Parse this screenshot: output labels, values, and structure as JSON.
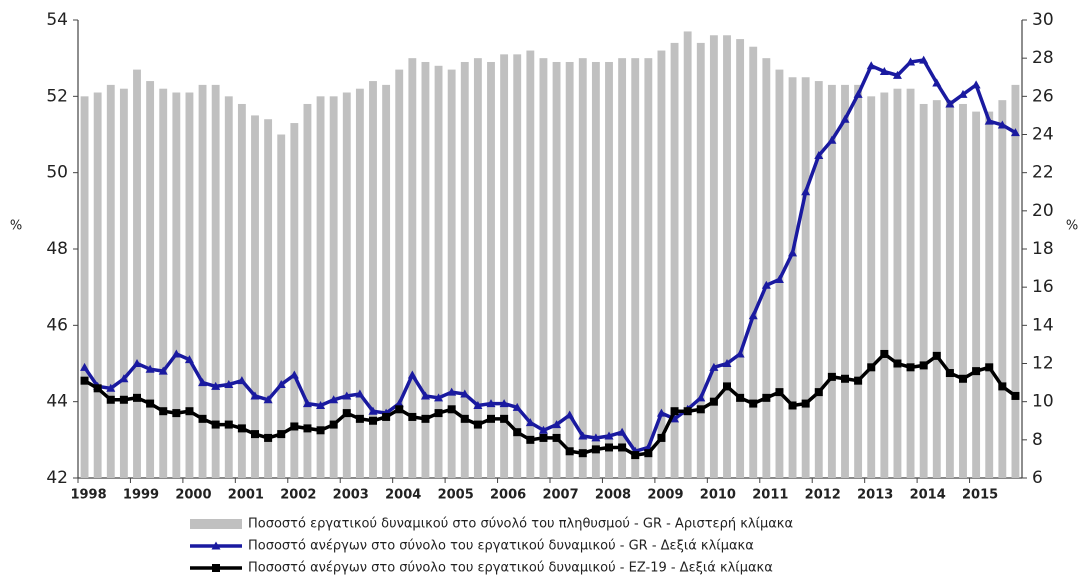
{
  "chart_data": {
    "type": "combo",
    "categories": [
      "1998",
      null,
      null,
      null,
      "1999",
      null,
      null,
      null,
      "2000",
      null,
      null,
      null,
      "2001",
      null,
      null,
      null,
      "2002",
      null,
      null,
      null,
      "2003",
      null,
      null,
      null,
      "2004",
      null,
      null,
      null,
      "2005",
      null,
      null,
      null,
      "2006",
      null,
      null,
      null,
      "2007",
      null,
      null,
      null,
      "2008",
      null,
      null,
      null,
      "2009",
      null,
      null,
      null,
      "2010",
      null,
      null,
      null,
      "2011",
      null,
      null,
      null,
      "2012",
      null,
      null,
      null,
      "2013",
      null,
      null,
      null,
      "2014",
      null,
      null,
      null,
      "2015",
      null,
      null,
      null
    ],
    "ylabel": "%",
    "y2label": "%",
    "ylim": [
      42,
      54
    ],
    "yticks": [
      42,
      44,
      46,
      48,
      50,
      52,
      54
    ],
    "y2lim": [
      6,
      30
    ],
    "y2ticks": [
      6,
      8,
      10,
      12,
      14,
      16,
      18,
      20,
      22,
      24,
      26,
      28,
      30
    ],
    "series": [
      {
        "name": "Ποσοστό εργατικού δυναμικού στο σύνολό του πληθυσμού - GR - Αριστερή κλίμακα",
        "kind": "bar",
        "color": "#c0c0c0",
        "values": [
          52.0,
          52.1,
          52.3,
          52.2,
          52.7,
          52.4,
          52.2,
          52.1,
          52.1,
          52.3,
          52.3,
          52.0,
          51.8,
          51.5,
          51.4,
          51.0,
          51.3,
          51.8,
          52.0,
          52.0,
          52.1,
          52.2,
          52.4,
          52.3,
          52.7,
          53.0,
          52.9,
          52.8,
          52.7,
          52.9,
          53.0,
          52.9,
          53.1,
          53.1,
          53.2,
          53.0,
          52.9,
          52.9,
          53.0,
          52.9,
          52.9,
          53.0,
          53.0,
          53.0,
          53.2,
          53.4,
          53.7,
          53.4,
          53.6,
          53.6,
          53.5,
          53.3,
          53.0,
          52.7,
          52.5,
          52.5,
          52.4,
          52.3,
          52.3,
          52.3,
          52.0,
          52.1,
          52.2,
          52.2,
          51.8,
          51.9,
          51.9,
          51.8,
          51.6,
          51.6,
          51.9,
          52.3
        ]
      },
      {
        "name": "Ποσοστό ανέργων στο σύνολο του εργατικού δυναμικού - GR - Δεξιά κλίμακα",
        "kind": "line",
        "marker": "triangle",
        "axis": "y2",
        "color": "#1a1aa0",
        "values": [
          11.8,
          10.8,
          10.7,
          11.2,
          12.0,
          11.7,
          11.6,
          12.5,
          12.2,
          11.0,
          10.8,
          10.9,
          11.1,
          10.3,
          10.1,
          10.9,
          11.4,
          9.9,
          9.8,
          10.1,
          10.3,
          10.4,
          9.5,
          9.4,
          9.9,
          11.4,
          10.3,
          10.2,
          10.5,
          10.4,
          9.8,
          9.9,
          9.9,
          9.7,
          8.9,
          8.5,
          8.8,
          9.3,
          8.2,
          8.1,
          8.2,
          8.4,
          7.4,
          7.6,
          9.4,
          9.1,
          9.6,
          10.2,
          11.8,
          12.0,
          12.5,
          14.5,
          16.1,
          16.4,
          17.8,
          21.0,
          22.9,
          23.7,
          24.8,
          26.1,
          27.6,
          27.3,
          27.1,
          27.8,
          27.9,
          26.7,
          25.6,
          26.1,
          26.6,
          24.7,
          24.5,
          24.1
        ]
      },
      {
        "name": "Ποσοστό ανέργων στο σύνολο του εργατικού δυναμικού - EZ-19 - Δεξιά κλίμακα",
        "kind": "line",
        "marker": "square",
        "axis": "y2",
        "color": "#000000",
        "values": [
          11.1,
          10.7,
          10.1,
          10.1,
          10.2,
          9.9,
          9.5,
          9.4,
          9.5,
          9.1,
          8.8,
          8.8,
          8.6,
          8.3,
          8.1,
          8.3,
          8.7,
          8.6,
          8.5,
          8.8,
          9.4,
          9.1,
          9.0,
          9.2,
          9.6,
          9.2,
          9.1,
          9.4,
          9.6,
          9.1,
          8.8,
          9.1,
          9.1,
          8.4,
          8.0,
          8.1,
          8.1,
          7.4,
          7.3,
          7.5,
          7.6,
          7.6,
          7.2,
          7.3,
          8.1,
          9.5,
          9.5,
          9.6,
          10.0,
          10.8,
          10.2,
          9.9,
          10.2,
          10.5,
          9.8,
          9.9,
          10.5,
          11.3,
          11.2,
          11.1,
          11.8,
          12.5,
          12.0,
          11.8,
          11.9,
          12.4,
          11.5,
          11.2,
          11.6,
          11.8,
          10.8,
          10.3
        ]
      }
    ]
  }
}
